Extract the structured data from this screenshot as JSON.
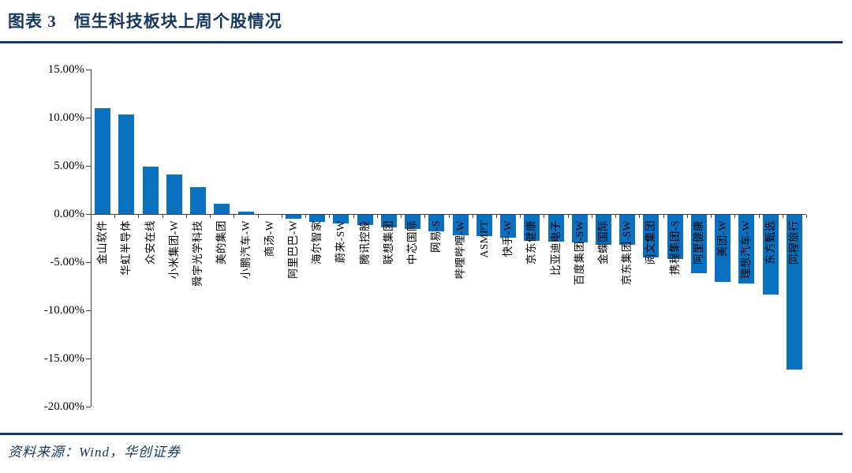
{
  "header": {
    "title": "图表 3　恒生科技板块上周个股情况"
  },
  "footer": {
    "source": "资料来源：Wind，华创证券"
  },
  "chart_data": {
    "type": "bar",
    "title": "恒生科技板块上周个股情况",
    "categories": [
      "金山软件",
      "华虹半导体",
      "众安在线",
      "小米集团-W",
      "舜宇光学科技",
      "美的集团",
      "小鹏汽车-W",
      "商汤-W",
      "阿里巴巴-W",
      "海尔智家",
      "蔚来-SW",
      "腾讯控股",
      "联想集团",
      "中芯国际",
      "网易-S",
      "哔哩哔哩-W",
      "ASMPT",
      "快手-W",
      "京东健康",
      "比亚迪电子",
      "百度集团-SW",
      "金蝶国际",
      "京东集团-SW",
      "阅文集团",
      "携程集团-S",
      "阿里健康",
      "美团-W",
      "理想汽车-W",
      "东方甄选",
      "同程旅行"
    ],
    "values": [
      11.0,
      10.3,
      4.9,
      4.1,
      2.8,
      1.1,
      0.25,
      0.0,
      -0.4,
      -0.75,
      -0.9,
      -1.05,
      -1.3,
      -1.45,
      -1.7,
      -2.1,
      -2.2,
      -2.35,
      -2.7,
      -2.8,
      -2.85,
      -3.1,
      -3.1,
      -4.4,
      -4.6,
      -6.1,
      -7.0,
      -7.1,
      -8.3,
      -16.1
    ],
    "unit": "%",
    "xlabel": "",
    "ylabel": "",
    "ylim": [
      -20,
      15
    ],
    "ytick_step": 5,
    "ytick_labels": [
      "15.00%",
      "10.00%",
      "5.00%",
      "0.00%",
      "-5.00%",
      "-10.00%",
      "-15.00%",
      "-20.00%"
    ],
    "grid": false,
    "legend": "none",
    "bar_color": "#0a71c1",
    "axis_color": "#3f3f3f",
    "accent_color": "#17375e"
  }
}
